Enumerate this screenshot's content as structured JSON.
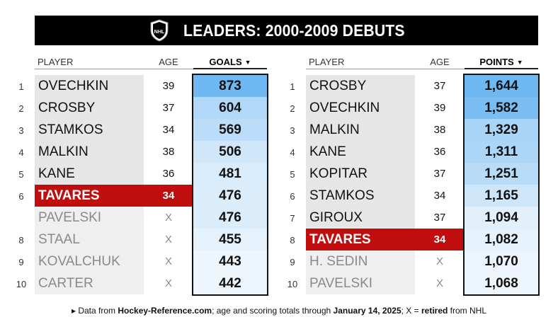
{
  "title": "LEADERS: 2000-2009 DEBUTS",
  "logo_text": "NHL",
  "footnote": {
    "prefix": "Data from ",
    "source": "Hockey-Reference.com",
    "middle": "; age and scoring totals through ",
    "date": "January 14, 2025",
    "middle2": "; X = ",
    "retired": "retired",
    "suffix": " from NHL"
  },
  "colors": {
    "highlight": "#c00d0d",
    "scale_high": "#6fb8f2",
    "scale_low": "#eef6fd"
  },
  "chart_data": [
    {
      "type": "table",
      "columns": [
        "PLAYER",
        "AGE",
        "GOALS"
      ],
      "sort_column": "GOALS",
      "rows": [
        {
          "rank": "1",
          "player": "OVECHKIN",
          "age": "39",
          "value": "873",
          "num": 873,
          "retired": false,
          "highlight": false
        },
        {
          "rank": "2",
          "player": "CROSBY",
          "age": "37",
          "value": "604",
          "num": 604,
          "retired": false,
          "highlight": false
        },
        {
          "rank": "3",
          "player": "STAMKOS",
          "age": "34",
          "value": "569",
          "num": 569,
          "retired": false,
          "highlight": false
        },
        {
          "rank": "4",
          "player": "MALKIN",
          "age": "38",
          "value": "506",
          "num": 506,
          "retired": false,
          "highlight": false
        },
        {
          "rank": "5",
          "player": "KANE",
          "age": "36",
          "value": "481",
          "num": 481,
          "retired": false,
          "highlight": false
        },
        {
          "rank": "6",
          "player": "TAVARES",
          "age": "34",
          "value": "476",
          "num": 476,
          "retired": false,
          "highlight": true
        },
        {
          "rank": "",
          "player": "PAVELSKI",
          "age": "X",
          "value": "476",
          "num": 476,
          "retired": true,
          "highlight": false
        },
        {
          "rank": "8",
          "player": "STAAL",
          "age": "X",
          "value": "455",
          "num": 455,
          "retired": true,
          "highlight": false
        },
        {
          "rank": "9",
          "player": "KOVALCHUK",
          "age": "X",
          "value": "443",
          "num": 443,
          "retired": true,
          "highlight": false
        },
        {
          "rank": "10",
          "player": "CARTER",
          "age": "X",
          "value": "442",
          "num": 442,
          "retired": true,
          "highlight": false
        }
      ]
    },
    {
      "type": "table",
      "columns": [
        "PLAYER",
        "AGE",
        "POINTS"
      ],
      "sort_column": "POINTS",
      "rows": [
        {
          "rank": "1",
          "player": "CROSBY",
          "age": "37",
          "value": "1,644",
          "num": 1644,
          "retired": false,
          "highlight": false
        },
        {
          "rank": "2",
          "player": "OVECHKIN",
          "age": "39",
          "value": "1,582",
          "num": 1582,
          "retired": false,
          "highlight": false
        },
        {
          "rank": "3",
          "player": "MALKIN",
          "age": "38",
          "value": "1,329",
          "num": 1329,
          "retired": false,
          "highlight": false
        },
        {
          "rank": "4",
          "player": "KANE",
          "age": "36",
          "value": "1,311",
          "num": 1311,
          "retired": false,
          "highlight": false
        },
        {
          "rank": "5",
          "player": "KOPITAR",
          "age": "37",
          "value": "1,251",
          "num": 1251,
          "retired": false,
          "highlight": false
        },
        {
          "rank": "6",
          "player": "STAMKOS",
          "age": "34",
          "value": "1,165",
          "num": 1165,
          "retired": false,
          "highlight": false
        },
        {
          "rank": "7",
          "player": "GIROUX",
          "age": "37",
          "value": "1,094",
          "num": 1094,
          "retired": false,
          "highlight": false
        },
        {
          "rank": "8",
          "player": "TAVARES",
          "age": "34",
          "value": "1,082",
          "num": 1082,
          "retired": false,
          "highlight": true
        },
        {
          "rank": "9",
          "player": "H. SEDIN",
          "age": "X",
          "value": "1,070",
          "num": 1070,
          "retired": true,
          "highlight": false
        },
        {
          "rank": "10",
          "player": "PAVELSKI",
          "age": "X",
          "value": "1,068",
          "num": 1068,
          "retired": true,
          "highlight": false
        }
      ]
    }
  ]
}
